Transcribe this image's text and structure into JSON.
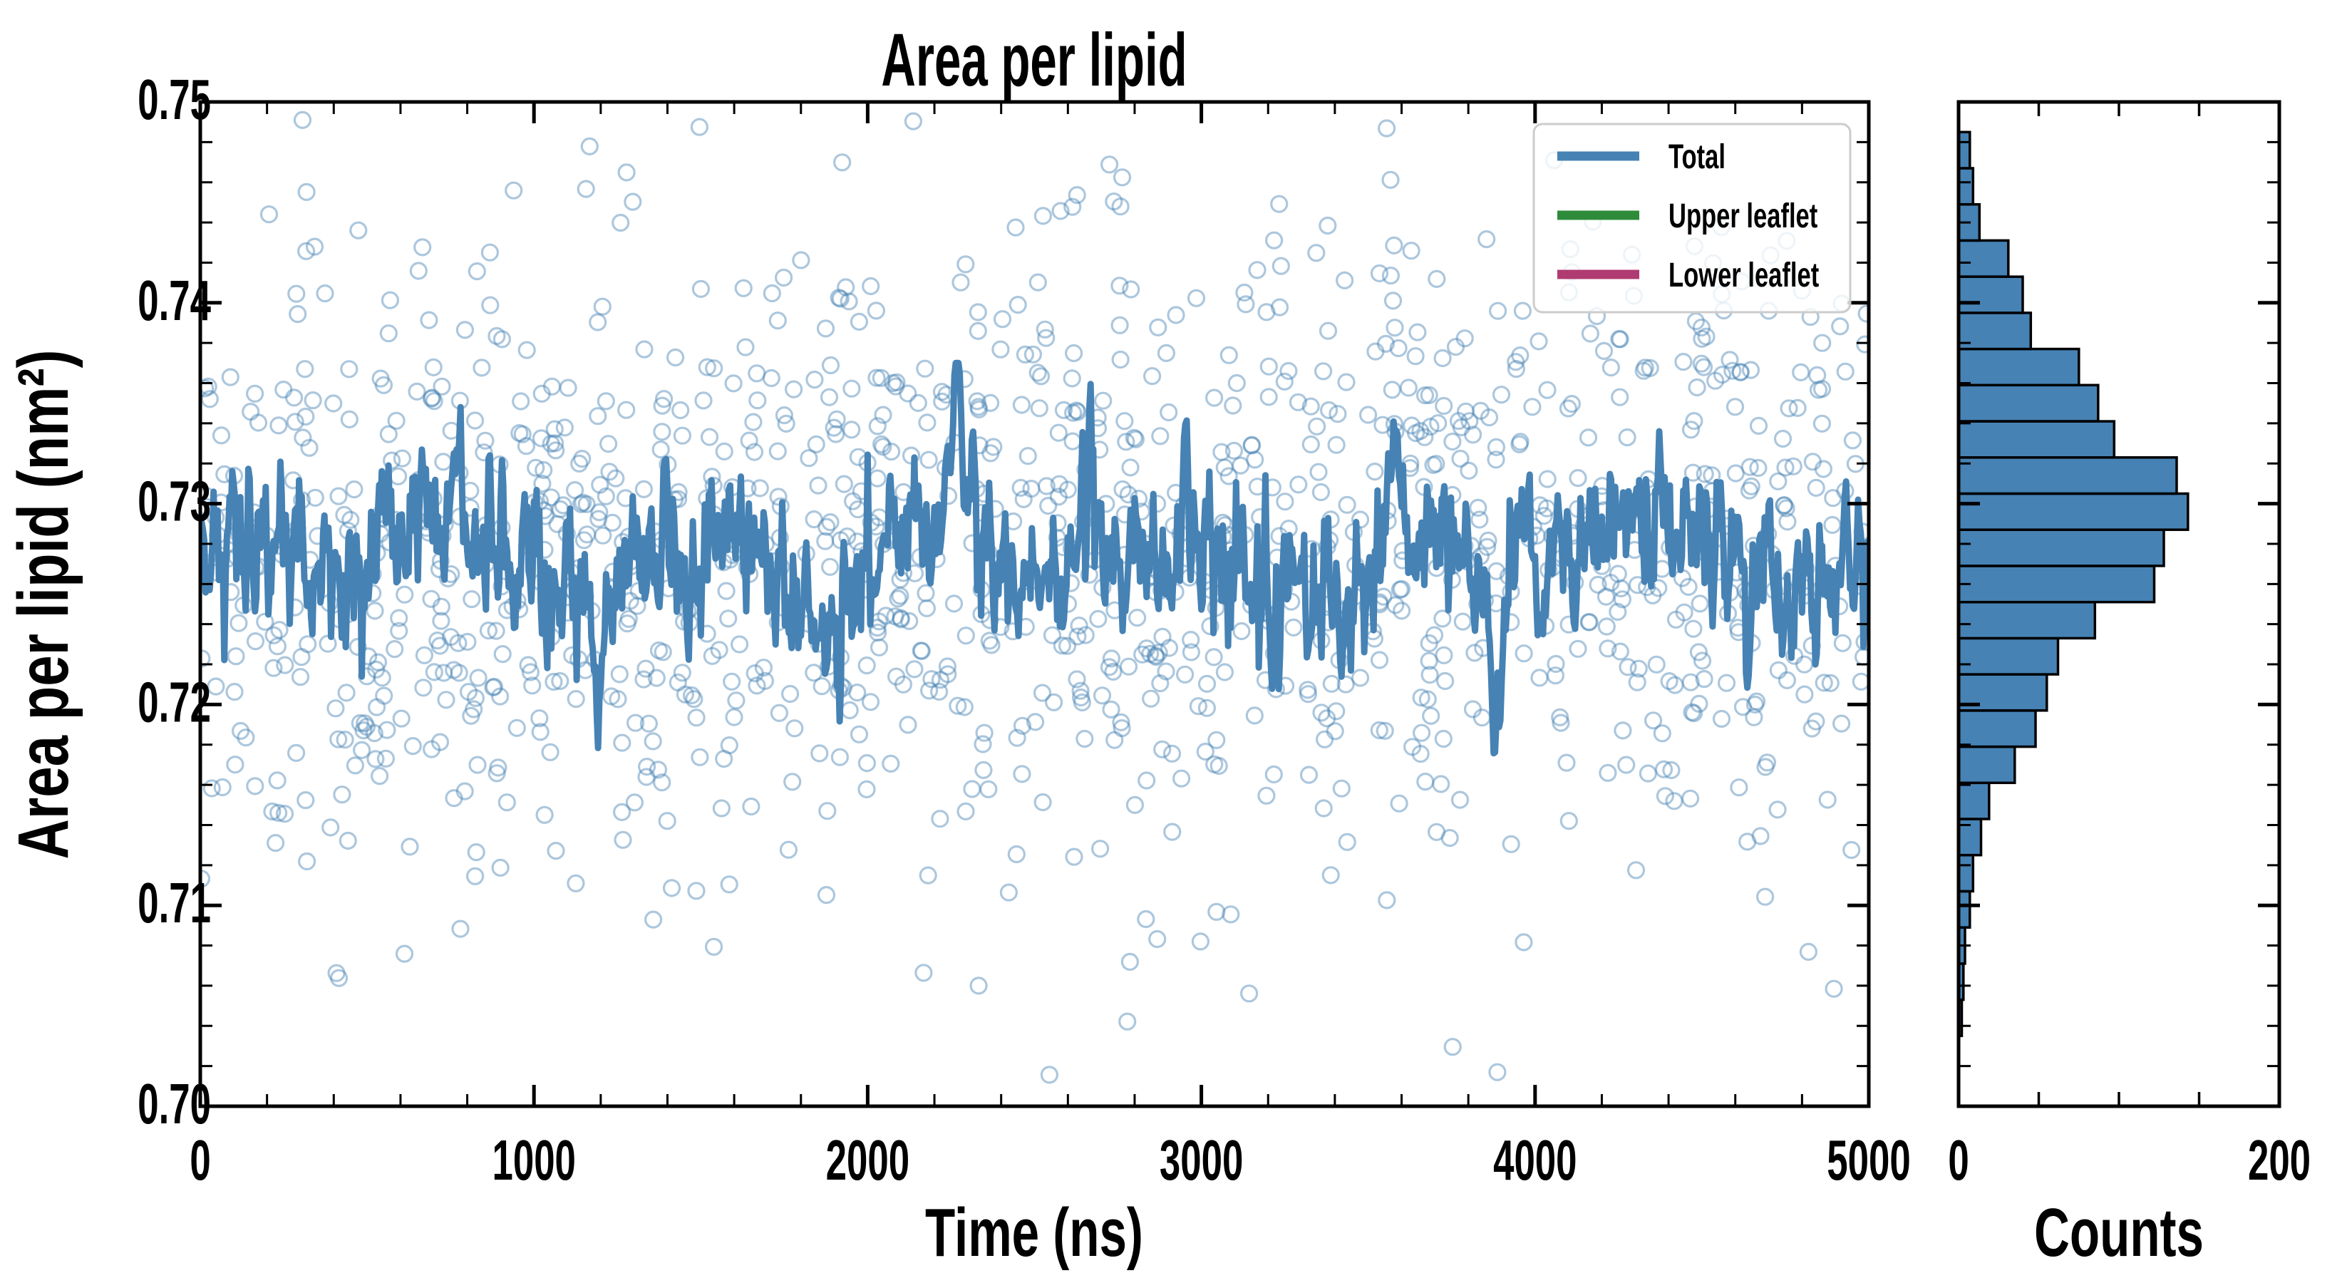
{
  "figure": {
    "background": "#ffffff",
    "accent_blue": "#4682B4",
    "accent_green": "#2e8b3a",
    "accent_magenta": "#b03a72"
  },
  "chart_data": [
    {
      "type": "scatter",
      "title": "Area per lipid",
      "xlabel": "Time (ns)",
      "ylabel": "Area per lipid (nm²)",
      "xlim": [
        0,
        5000
      ],
      "ylim": [
        0.7,
        0.75
      ],
      "xticks": [
        0,
        1000,
        2000,
        3000,
        4000,
        5000
      ],
      "xtick_labels": [
        "0",
        "1000",
        "2000",
        "3000",
        "4000",
        "5000"
      ],
      "x_minor_step": 200,
      "yticks": [
        0.7,
        0.71,
        0.72,
        0.73,
        0.74,
        0.75
      ],
      "ytick_labels": [
        "0.70",
        "0.71",
        "0.72",
        "0.73",
        "0.74",
        "0.75"
      ],
      "y_minor_step": 0.002,
      "grid": false,
      "tick_direction": "in",
      "legend": {
        "position": "upper right",
        "entries": [
          {
            "label": "Total",
            "color": "#4682B4"
          },
          {
            "label": "Upper leaflet",
            "color": "#2e8b3a"
          },
          {
            "label": "Lower leaflet",
            "color": "#b03a72"
          }
        ]
      },
      "scatter": {
        "description": "per-frame instantaneous area per lipid, open circles",
        "n": 1276,
        "mean": 0.7273,
        "sd": 0.0082,
        "x_range": [
          0,
          5000
        ],
        "marker_radius": 11,
        "stroke_width": 3.2,
        "color": "#4682B4",
        "alpha": 0.45,
        "seed": 11
      },
      "line": {
        "label": "Total",
        "description": "running-average area per lipid",
        "color": "#4682B4",
        "width": 9,
        "n": 1250,
        "dt": 4,
        "mean": 0.7273,
        "ar_coef": 0.5,
        "ar_sigma": 0.002,
        "ar_gain": 0.85,
        "wobble": [
          [
            0.0012,
            0.035,
            1.2
          ],
          [
            0.0009,
            0.013,
            0.4
          ],
          [
            0.0007,
            0.075,
            2.2
          ]
        ],
        "features": [
          [
            2265,
            16,
            0.0075
          ],
          [
            2650,
            25,
            0.0042
          ],
          [
            760,
            18,
            0.004
          ],
          [
            3590,
            15,
            0.0035
          ],
          [
            1845,
            12,
            -0.005
          ],
          [
            1190,
            10,
            -0.004
          ],
          [
            4640,
            10,
            -0.0045
          ],
          [
            3880,
            14,
            -0.0088
          ]
        ],
        "clamp": [
          0.7155,
          0.737
        ],
        "value_min": 0.716,
        "value_max": 0.7365,
        "seed": 42
      }
    },
    {
      "type": "bar",
      "orientation": "horizontal",
      "xlabel": "Counts",
      "xlim": [
        0,
        200
      ],
      "xticks": [
        0,
        50,
        100,
        150,
        200
      ],
      "xtick_labels": [
        "0",
        "200"
      ],
      "ylim": [
        0.7,
        0.75
      ],
      "bar_color": "#4682B4",
      "bar_edge_color": "#000000",
      "bin_edges": [
        0.7035,
        0.7053,
        0.7071,
        0.7089,
        0.7107,
        0.7125,
        0.7143,
        0.7161,
        0.7179,
        0.7197,
        0.7215,
        0.7233,
        0.7251,
        0.7269,
        0.7287,
        0.7305,
        0.7323,
        0.7341,
        0.7359,
        0.7377,
        0.7395,
        0.7413,
        0.7431,
        0.7449,
        0.7467,
        0.7485
      ],
      "counts": [
        2,
        3,
        4,
        7,
        9,
        14,
        19,
        35,
        48,
        55,
        62,
        85,
        122,
        128,
        143,
        136,
        97,
        87,
        75,
        45,
        40,
        31,
        13,
        9,
        7
      ]
    }
  ]
}
